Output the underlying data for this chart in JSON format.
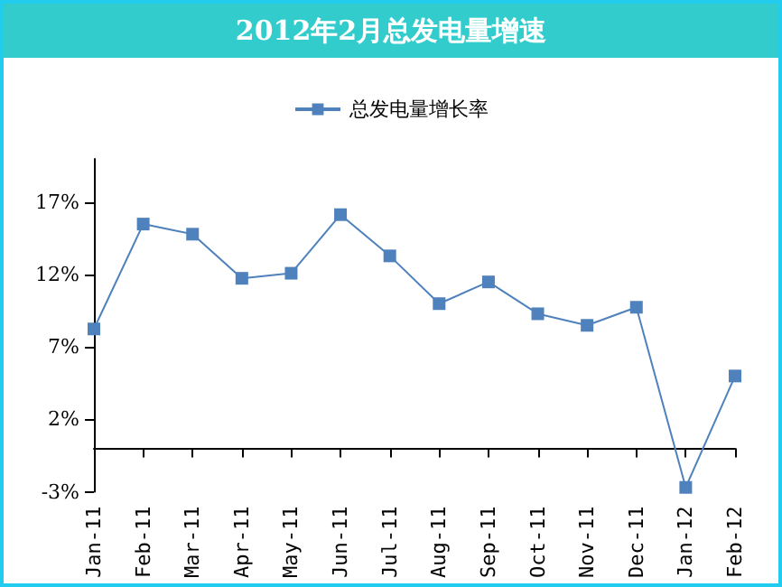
{
  "chart_data": {
    "type": "line",
    "title": "2012年2月总发电量增速",
    "categories": [
      "Jan-11",
      "Feb-11",
      "Mar-11",
      "Apr-11",
      "May-11",
      "Jun-11",
      "Jul-11",
      "Aug-11",
      "Sep-11",
      "Oct-11",
      "Nov-11",
      "Dec-11",
      "Jan-12",
      "Feb-12"
    ],
    "series": [
      {
        "name": "总发电量增长率",
        "color": "#4f81bd",
        "values": [
          8.25,
          15.5,
          14.8,
          11.75,
          12.1,
          16.15,
          13.3,
          10.0,
          11.5,
          9.3,
          8.5,
          9.75,
          -2.7,
          5.0
        ]
      }
    ],
    "ylim": [
      -3,
      20
    ],
    "yticks": [
      {
        "value": -3,
        "label": "-3%"
      },
      {
        "value": 2,
        "label": "2%"
      },
      {
        "value": 7,
        "label": "7%"
      },
      {
        "value": 12,
        "label": "12%"
      },
      {
        "value": 17,
        "label": "17%"
      }
    ],
    "grid": false,
    "legend": "top",
    "marker": "square",
    "line_style": "solid"
  }
}
